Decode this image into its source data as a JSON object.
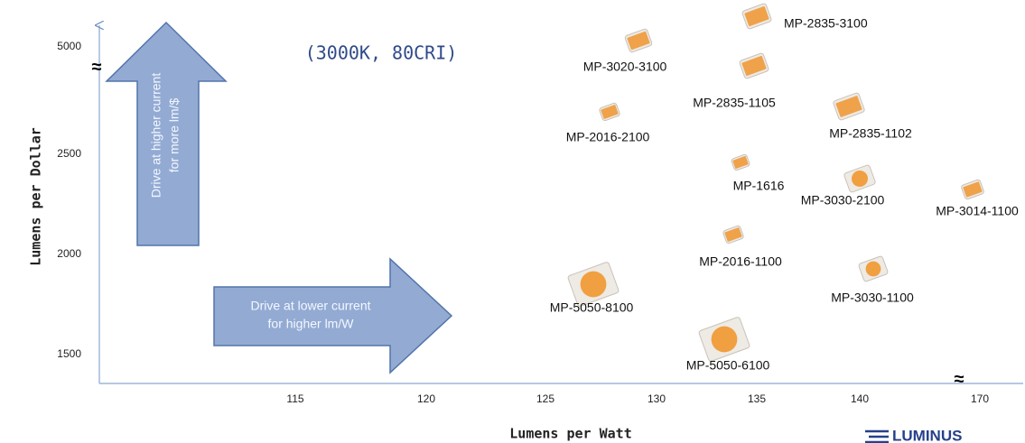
{
  "subtitle": "(3000K, 80CRI)",
  "y_axis": {
    "title": "Lumens per Dollar",
    "ticks": [
      "5000",
      "2500",
      "2000",
      "1500"
    ]
  },
  "x_axis": {
    "title": "Lumens per Watt",
    "ticks": [
      "115",
      "120",
      "125",
      "130",
      "135",
      "140",
      "170"
    ]
  },
  "arrows": [
    {
      "lines": [
        "Drive at higher current",
        "for more lm/$"
      ]
    },
    {
      "lines": [
        "Drive at lower current",
        "for higher lm/W"
      ]
    }
  ],
  "products": [
    "MP-2835-3100",
    "MP-3020-3100",
    "MP-2835-1105",
    "MP-2016-2100",
    "MP-2835-1102",
    "MP-1616",
    "MP-3030-2100",
    "MP-3014-1100",
    "MP-2016-1100",
    "MP-3030-1100",
    "MP-5050-8100",
    "MP-5050-6100"
  ],
  "logo": "LUMINUS"
}
